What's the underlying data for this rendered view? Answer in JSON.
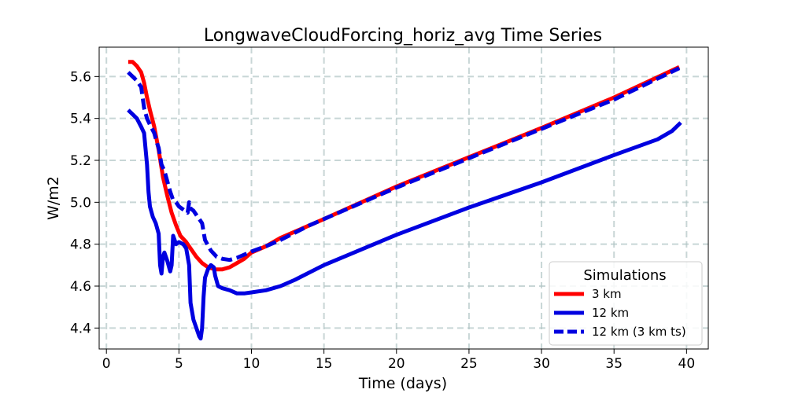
{
  "chart_data": {
    "type": "line",
    "title": "LongwaveCloudForcing_horiz_avg Time Series",
    "xlabel": "Time (days)",
    "ylabel": "W/m2",
    "xlim": [
      -0.5,
      41.5
    ],
    "ylim": [
      4.3,
      5.74
    ],
    "x_ticks": [
      0,
      5,
      10,
      15,
      20,
      25,
      30,
      35,
      40
    ],
    "y_ticks": [
      4.4,
      4.6,
      4.8,
      5.0,
      5.2,
      5.4,
      5.6
    ],
    "grid": true,
    "legend": {
      "title": "Simulations",
      "position": "lower-right"
    },
    "series": [
      {
        "name": "3 km",
        "color": "#ff0000",
        "style": "solid",
        "points": [
          [
            1.5,
            5.67
          ],
          [
            1.8,
            5.67
          ],
          [
            2.1,
            5.65
          ],
          [
            2.4,
            5.62
          ],
          [
            2.6,
            5.57
          ],
          [
            2.8,
            5.5
          ],
          [
            3.0,
            5.44
          ],
          [
            3.3,
            5.36
          ],
          [
            3.6,
            5.25
          ],
          [
            3.9,
            5.12
          ],
          [
            4.2,
            5.03
          ],
          [
            4.5,
            4.95
          ],
          [
            4.8,
            4.89
          ],
          [
            5.1,
            4.84
          ],
          [
            5.5,
            4.81
          ],
          [
            5.8,
            4.78
          ],
          [
            6.2,
            4.74
          ],
          [
            6.6,
            4.71
          ],
          [
            7.0,
            4.69
          ],
          [
            7.5,
            4.68
          ],
          [
            8.0,
            4.68
          ],
          [
            8.5,
            4.69
          ],
          [
            9.0,
            4.71
          ],
          [
            9.5,
            4.73
          ],
          [
            10,
            4.76
          ],
          [
            11,
            4.79
          ],
          [
            12,
            4.83
          ],
          [
            13,
            4.86
          ],
          [
            14,
            4.89
          ],
          [
            15,
            4.92
          ],
          [
            20,
            5.075
          ],
          [
            25,
            5.215
          ],
          [
            30,
            5.355
          ],
          [
            35,
            5.5
          ],
          [
            39.5,
            5.645
          ]
        ]
      },
      {
        "name": "12 km",
        "color": "#0000e0",
        "style": "solid",
        "points": [
          [
            1.5,
            5.44
          ],
          [
            1.8,
            5.42
          ],
          [
            2.1,
            5.4
          ],
          [
            2.4,
            5.36
          ],
          [
            2.6,
            5.33
          ],
          [
            2.8,
            5.18
          ],
          [
            2.9,
            5.05
          ],
          [
            3.0,
            4.98
          ],
          [
            3.2,
            4.93
          ],
          [
            3.4,
            4.9
          ],
          [
            3.6,
            4.85
          ],
          [
            3.7,
            4.7
          ],
          [
            3.8,
            4.66
          ],
          [
            3.9,
            4.74
          ],
          [
            4.0,
            4.76
          ],
          [
            4.2,
            4.72
          ],
          [
            4.4,
            4.67
          ],
          [
            4.5,
            4.7
          ],
          [
            4.6,
            4.84
          ],
          [
            4.8,
            4.8
          ],
          [
            5.0,
            4.81
          ],
          [
            5.3,
            4.8
          ],
          [
            5.5,
            4.78
          ],
          [
            5.7,
            4.7
          ],
          [
            5.8,
            4.52
          ],
          [
            6.0,
            4.44
          ],
          [
            6.2,
            4.4
          ],
          [
            6.4,
            4.36
          ],
          [
            6.5,
            4.35
          ],
          [
            6.6,
            4.4
          ],
          [
            6.7,
            4.55
          ],
          [
            6.8,
            4.64
          ],
          [
            7.0,
            4.68
          ],
          [
            7.2,
            4.7
          ],
          [
            7.4,
            4.69
          ],
          [
            7.5,
            4.65
          ],
          [
            7.7,
            4.6
          ],
          [
            8.0,
            4.59
          ],
          [
            8.5,
            4.58
          ],
          [
            9.0,
            4.565
          ],
          [
            9.5,
            4.565
          ],
          [
            10,
            4.57
          ],
          [
            11,
            4.58
          ],
          [
            12,
            4.6
          ],
          [
            13,
            4.63
          ],
          [
            15,
            4.7
          ],
          [
            20,
            4.845
          ],
          [
            25,
            4.975
          ],
          [
            30,
            5.095
          ],
          [
            35,
            5.225
          ],
          [
            38,
            5.3
          ],
          [
            39,
            5.34
          ],
          [
            39.6,
            5.38
          ]
        ]
      },
      {
        "name": "12 km (3 km ts)",
        "color": "#0000e0",
        "style": "dashed",
        "points": [
          [
            1.5,
            5.62
          ],
          [
            1.8,
            5.6
          ],
          [
            2.1,
            5.58
          ],
          [
            2.4,
            5.55
          ],
          [
            2.6,
            5.45
          ],
          [
            2.8,
            5.4
          ],
          [
            3.0,
            5.37
          ],
          [
            3.3,
            5.33
          ],
          [
            3.5,
            5.28
          ],
          [
            3.6,
            5.26
          ],
          [
            3.8,
            5.18
          ],
          [
            4.0,
            5.15
          ],
          [
            4.2,
            5.1
          ],
          [
            4.4,
            5.05
          ],
          [
            4.6,
            5.01
          ],
          [
            4.8,
            5.0
          ],
          [
            5.0,
            4.98
          ],
          [
            5.2,
            4.97
          ],
          [
            5.4,
            4.96
          ],
          [
            5.6,
            4.95
          ],
          [
            5.7,
            5.0
          ],
          [
            5.8,
            4.97
          ],
          [
            6.0,
            4.96
          ],
          [
            6.3,
            4.93
          ],
          [
            6.6,
            4.9
          ],
          [
            6.8,
            4.82
          ],
          [
            7.2,
            4.77
          ],
          [
            7.6,
            4.74
          ],
          [
            8.0,
            4.73
          ],
          [
            8.5,
            4.725
          ],
          [
            9.0,
            4.735
          ],
          [
            9.5,
            4.75
          ],
          [
            10,
            4.765
          ],
          [
            11,
            4.79
          ],
          [
            12,
            4.82
          ],
          [
            13,
            4.855
          ],
          [
            14,
            4.89
          ],
          [
            15,
            4.92
          ],
          [
            20,
            5.07
          ],
          [
            25,
            5.21
          ],
          [
            30,
            5.35
          ],
          [
            35,
            5.49
          ],
          [
            39.5,
            5.64
          ]
        ]
      }
    ]
  }
}
